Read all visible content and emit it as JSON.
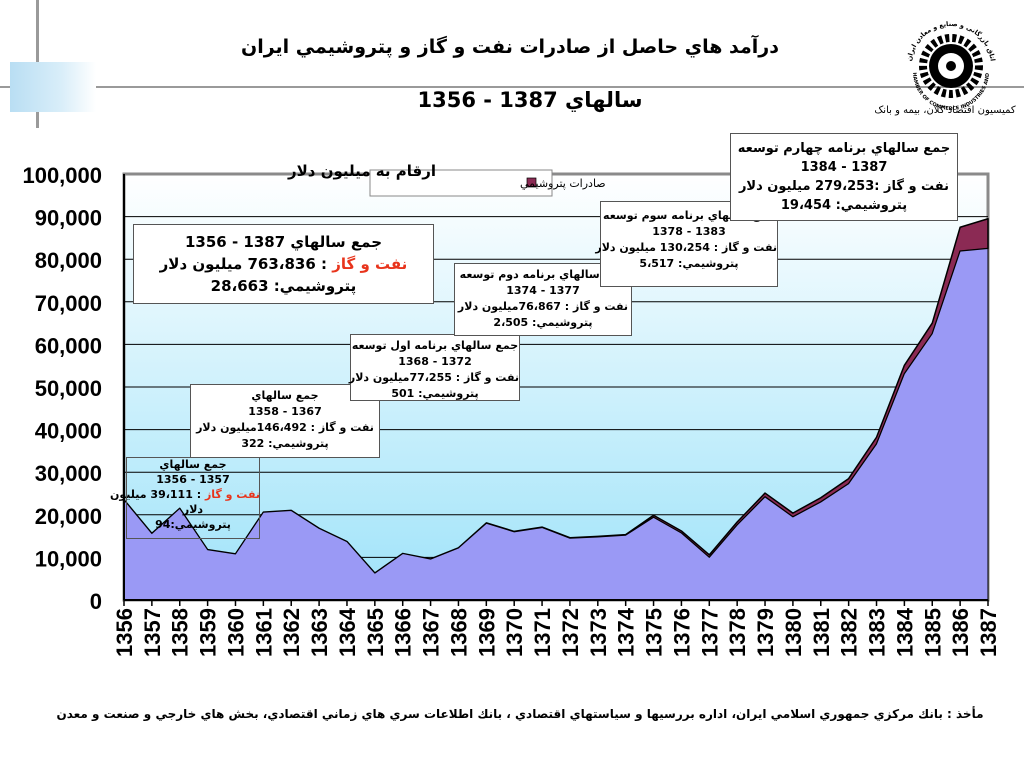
{
  "title": "درآمد هاي حاصل از صادرات نفت و گاز و پتروشيمي ايران",
  "subtitle": "سالهاي  1387 - 1356",
  "logo": {
    "emblem": "chamber-of-commerce-gear-emblem",
    "arc_text_1": "اتاق بازرگانی و صنایع و معادن ایران",
    "arc_text_2": "IRAN CHAMBER OF COMMERCE INDUSTRIES AND MINES",
    "caption": "کمیسیون اقتصاد کلان، بیمه و بانک"
  },
  "source_text": "مأخذ :  بانك مركزي جمهوري اسلامي ايران، اداره بررسيها و سياستهاي اقتصادي ، بانك اطلاعات سري هاي زماني اقتصادي، بخش هاي خارجي و  صنعت و معدن",
  "callouts": {
    "total": {
      "heading": "جمع سالهاي  1387 - 1356",
      "oil_label": "نفت و گاز",
      "oil_value": " : 763،836 ميليون دلار",
      "petro": "پتروشيمي: 28،663"
    },
    "p1356": {
      "heading": "جمع سالهاي",
      "years": "1357 - 1356",
      "oil_label": "نفت و گاز",
      "oil_value": " : 39،111 ميليون",
      "unit": "دلار",
      "petro": "پتروشيمي:94"
    },
    "p1358": {
      "heading": "جمع سالهاي",
      "years": "1367 - 1358",
      "oil": "نفت و گاز  : 146،492ميليون دلار",
      "petro": "پتروشيمي: 322"
    },
    "plan1": {
      "heading": "جمع سالهاي برنامه اول توسعه",
      "years": "1372 - 1368",
      "oil": "نفت و گاز  :  77،255ميليون دلار",
      "petro": "پتروشيمي: 501"
    },
    "plan2": {
      "heading": "جمع سالهاي برنامه دوم توسعه",
      "years": "1377 - 1374",
      "oil": "نفت و گاز  :  76،867ميليون دلار",
      "petro": "پتروشيمي: 2،505"
    },
    "plan3": {
      "heading": "جمع سالهاي برنامه سوم توسعه",
      "years": "1383 - 1378",
      "oil": "نفت و گاز  : 130،254 ميليون دلار",
      "petro": "پتروشيمي: 5،517"
    },
    "plan4": {
      "heading": "جمع سالهاي برنامه چهارم توسعه",
      "years": "1387 - 1384",
      "oil": "نفت و گاز  :279،253  ميليون دلار",
      "petro": "پتروشيمي: 19،454"
    }
  },
  "chart_data": {
    "type": "area",
    "stacked": true,
    "unit_note": "ارقام به ميليون دلار",
    "legend": {
      "label": "صادرات پتروشيمي",
      "position": "top-center"
    },
    "x": [
      "1356",
      "1357",
      "1358",
      "1359",
      "1360",
      "1361",
      "1362",
      "1363",
      "1364",
      "1365",
      "1366",
      "1367",
      "1368",
      "1369",
      "1370",
      "1371",
      "1372",
      "1373",
      "1374",
      "1375",
      "1376",
      "1377",
      "1378",
      "1379",
      "1380",
      "1381",
      "1382",
      "1383",
      "1384",
      "1385",
      "1386",
      "1387"
    ],
    "series": [
      {
        "color": "#9a99f5",
        "values": [
          23500,
          15600,
          21500,
          11800,
          10800,
          20600,
          21000,
          16800,
          13700,
          6300,
          10900,
          9600,
          12200,
          18000,
          16000,
          17000,
          14500,
          14800,
          15200,
          19400,
          15700,
          10000,
          17600,
          24200,
          19500,
          23000,
          27300,
          36600,
          53100,
          62500,
          81900,
          82500
        ]
      },
      {
        "name": "صادرات پتروشيمي",
        "color": "#8b2a54",
        "values": [
          50,
          50,
          20,
          20,
          20,
          30,
          30,
          30,
          30,
          30,
          30,
          30,
          60,
          100,
          100,
          120,
          120,
          150,
          150,
          500,
          500,
          600,
          700,
          900,
          900,
          1000,
          1200,
          1600,
          2000,
          2500,
          5600,
          7000
        ]
      }
    ],
    "ylim": [
      0,
      100000
    ],
    "yticks": [
      0,
      10000,
      20000,
      30000,
      40000,
      50000,
      60000,
      70000,
      80000,
      90000,
      100000
    ],
    "ytick_labels": [
      "0",
      "10,000",
      "20,000",
      "30,000",
      "40,000",
      "50,000",
      "60,000",
      "70,000",
      "80,000",
      "90,000",
      "100,000"
    ],
    "grid": true,
    "colors": {
      "plot_top": "#ffffff",
      "plot_bottom": "#9fe3f9"
    }
  }
}
